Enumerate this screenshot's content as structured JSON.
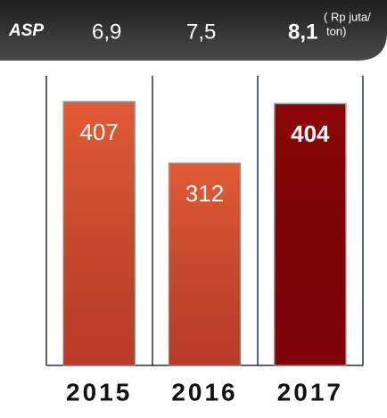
{
  "chart_data": {
    "type": "bar",
    "header": {
      "label": "ASP",
      "values": [
        6.9,
        7.5,
        8.1
      ],
      "value_labels": [
        "6,9",
        "7,5",
        "8,1"
      ],
      "unit": [
        "( Rp juta/",
        "ton)"
      ]
    },
    "categories": [
      "2015",
      "2016",
      "2017"
    ],
    "values": [
      407,
      312,
      404
    ],
    "colors": [
      "#e55a36",
      "#e55a36",
      "#8c0606"
    ],
    "ylim": [
      0,
      447
    ]
  }
}
